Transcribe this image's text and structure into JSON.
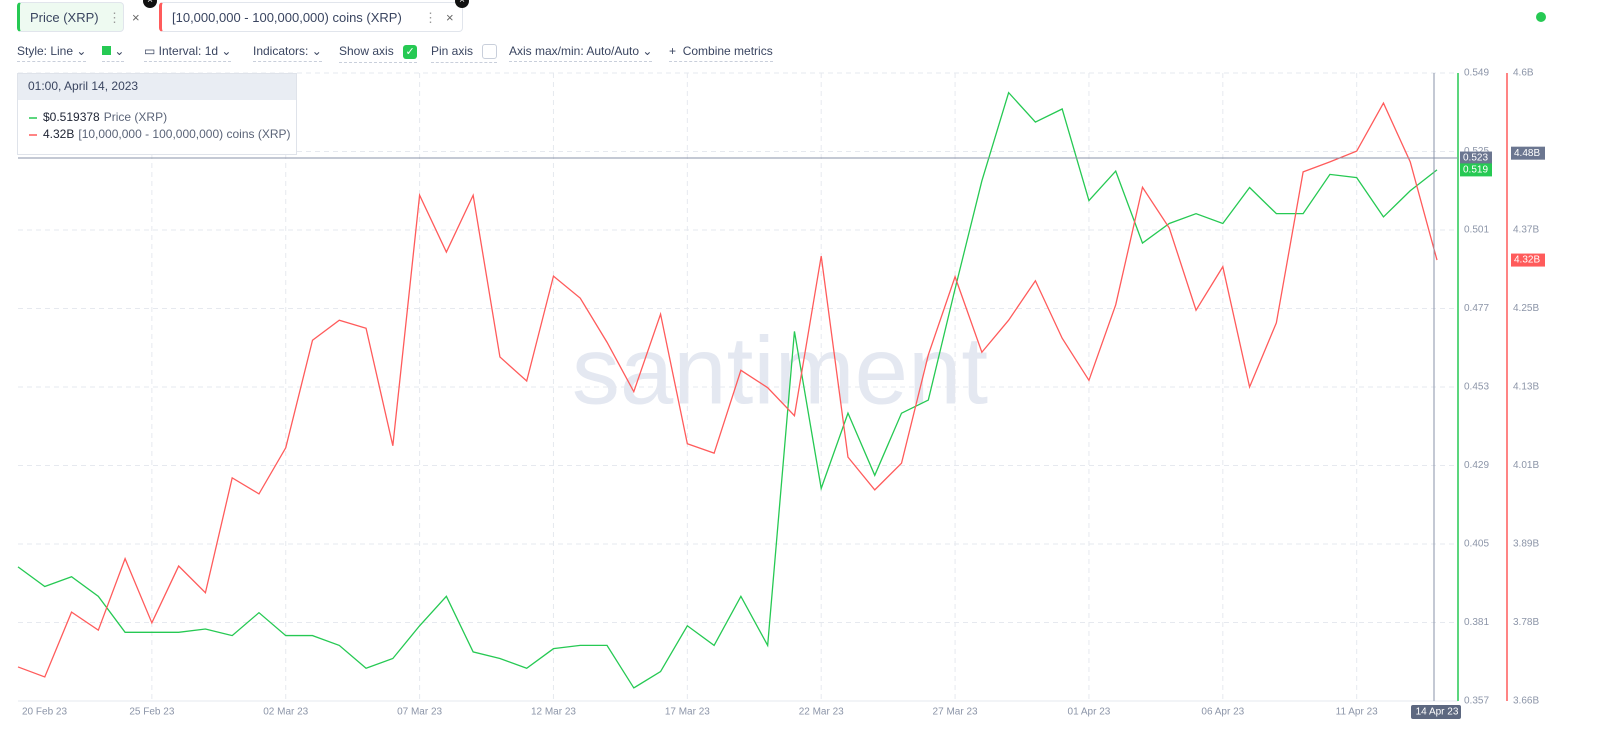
{
  "toolbar": {
    "style": "Style: Line",
    "interval": "Interval: 1d",
    "indicators": "Indicators:",
    "show_axis": "Show axis",
    "pin_axis": "Pin axis",
    "axis_minmax": "Axis max/min: Auto/Auto",
    "combine": "Combine metrics"
  },
  "chart_data": {
    "type": "line",
    "watermark": "santiment",
    "categories": [
      "20 Feb 23",
      null,
      null,
      null,
      null,
      "25 Feb 23",
      null,
      null,
      null,
      null,
      "02 Mar 23",
      null,
      null,
      null,
      null,
      "07 Mar 23",
      null,
      null,
      null,
      null,
      "12 Mar 23",
      null,
      null,
      null,
      null,
      "17 Mar 23",
      null,
      null,
      null,
      null,
      "22 Mar 23",
      null,
      null,
      null,
      null,
      "27 Mar 23",
      null,
      null,
      null,
      null,
      "01 Apr 23",
      null,
      null,
      null,
      null,
      "06 Apr 23",
      null,
      null,
      null,
      null,
      "11 Apr 23",
      null,
      null,
      "14 Apr 23"
    ],
    "series": [
      {
        "name": "Price (XRP)",
        "color": "#26c953",
        "last_label": "0.519",
        "values": [
          0.398,
          0.392,
          0.395,
          0.389,
          0.378,
          0.378,
          0.378,
          0.379,
          0.377,
          0.384,
          0.377,
          0.377,
          0.374,
          0.367,
          0.37,
          0.38,
          0.389,
          0.372,
          0.37,
          0.367,
          0.373,
          0.374,
          0.374,
          0.361,
          0.366,
          0.38,
          0.374,
          0.389,
          0.374,
          0.47,
          0.422,
          0.445,
          0.426,
          0.445,
          0.449,
          0.483,
          0.516,
          0.543,
          0.534,
          0.538,
          0.51,
          0.519,
          0.497,
          0.503,
          0.506,
          0.503,
          0.514,
          0.506,
          0.506,
          0.518,
          0.517,
          0.505,
          0.513,
          0.519378
        ]
      },
      {
        "name": "[10,000,000 - 100,000,000) coins (XRP)",
        "color": "#ff5b5b",
        "axis": "y2",
        "last_label": "4.32B",
        "values": [
          3711000000,
          3696000000,
          3793000000,
          3766000000,
          3873000000,
          3777000000,
          3862000000,
          3822000000,
          3994000000,
          3970000000,
          4039000000,
          4200000000,
          4230000000,
          4218000000,
          4042000000,
          4417000000,
          4332000000,
          4417000000,
          4175000000,
          4139000000,
          4296000000,
          4263000000,
          4197000000,
          4123000000,
          4239000000,
          4045000000,
          4031000000,
          4155000000,
          4129000000,
          4087000000,
          4326000000,
          4025000000,
          3976000000,
          4016000000,
          4178000000,
          4295000000,
          4182000000,
          4230000000,
          4289000000,
          4203000000,
          4140000000,
          4253000000,
          4429000000,
          4368000000,
          4245000000,
          4310000000,
          4130000000,
          4226000000,
          4452000000,
          4467000000,
          4483000000,
          4555000000,
          4467000000,
          4320000000
        ]
      }
    ],
    "ylim": [
      0.357,
      0.549
    ],
    "yticks": [
      0.357,
      0.381,
      0.405,
      0.429,
      0.453,
      0.477,
      0.501,
      0.525,
      0.549
    ],
    "y2lim": [
      3660000000,
      4600000000
    ],
    "y2ticks": [
      {
        "value": 3660000000,
        "label": "3.66B"
      },
      {
        "value": 3777500000,
        "label": "3.78B"
      },
      {
        "value": 3895000000,
        "label": "3.89B"
      },
      {
        "value": 4012500000,
        "label": "4.01B"
      },
      {
        "value": 4130000000,
        "label": "4.13B"
      },
      {
        "value": 4247500000,
        "label": "4.25B"
      },
      {
        "value": 4365000000,
        "label": "4.37B"
      },
      {
        "value": 4482500000,
        "label": "4.48B"
      },
      {
        "value": 4600000000,
        "label": "4.6B"
      }
    ],
    "grid": true,
    "crosshair": {
      "y": 0.523,
      "y2": {
        "value": 4480000000,
        "label": "4.48B"
      }
    },
    "tooltip": {
      "title": "01:00, April 14, 2023",
      "value_labels": [
        "$0.519378",
        "4.32B"
      ]
    }
  }
}
